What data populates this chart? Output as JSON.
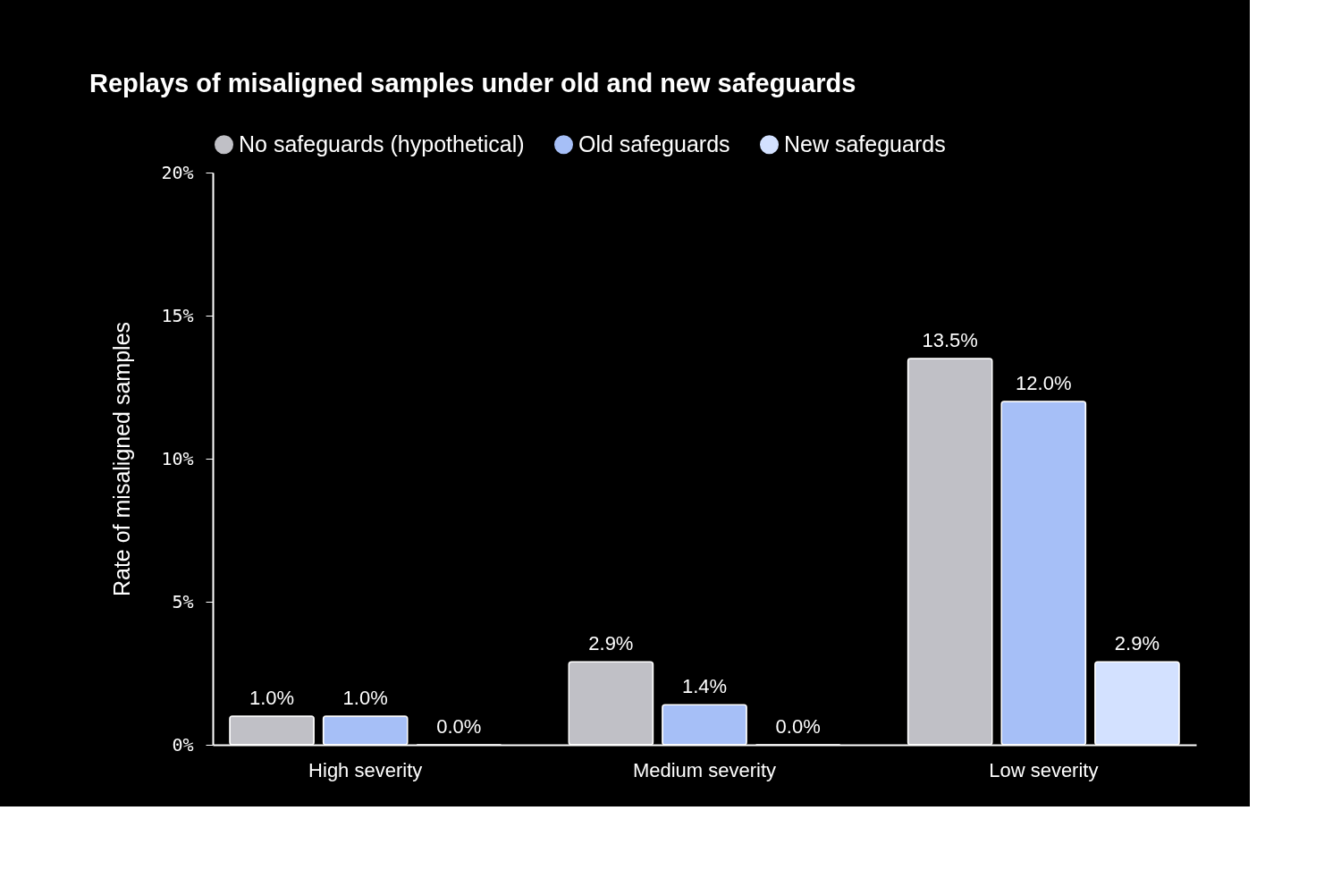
{
  "chart_data": {
    "type": "bar",
    "title": "Replays of misaligned samples under old and new safeguards",
    "ylabel": "Rate of misaligned samples",
    "categories": [
      "High severity",
      "Medium severity",
      "Low severity"
    ],
    "series": [
      {
        "name": "No safeguards (hypothetical)",
        "color": "#c0c0c6",
        "values": [
          1.0,
          2.9,
          13.5
        ],
        "value_labels": [
          "1.0%",
          "2.9%",
          "13.5%"
        ]
      },
      {
        "name": "Old safeguards",
        "color": "#a6bff7",
        "values": [
          1.0,
          1.4,
          12.0
        ],
        "value_labels": [
          "1.0%",
          "1.4%",
          "12.0%"
        ]
      },
      {
        "name": "New safeguards",
        "color": "#d3e1ff",
        "values": [
          0.0,
          0.0,
          2.9
        ],
        "value_labels": [
          "0.0%",
          "0.0%",
          "2.9%"
        ]
      }
    ],
    "ylim": [
      0,
      20
    ],
    "yticks": [
      {
        "value": 0,
        "label": "0%"
      },
      {
        "value": 5,
        "label": "5%"
      },
      {
        "value": 10,
        "label": "10%"
      },
      {
        "value": 15,
        "label": "15%"
      },
      {
        "value": 20,
        "label": "20%"
      }
    ],
    "grid": false,
    "legend": "top"
  }
}
